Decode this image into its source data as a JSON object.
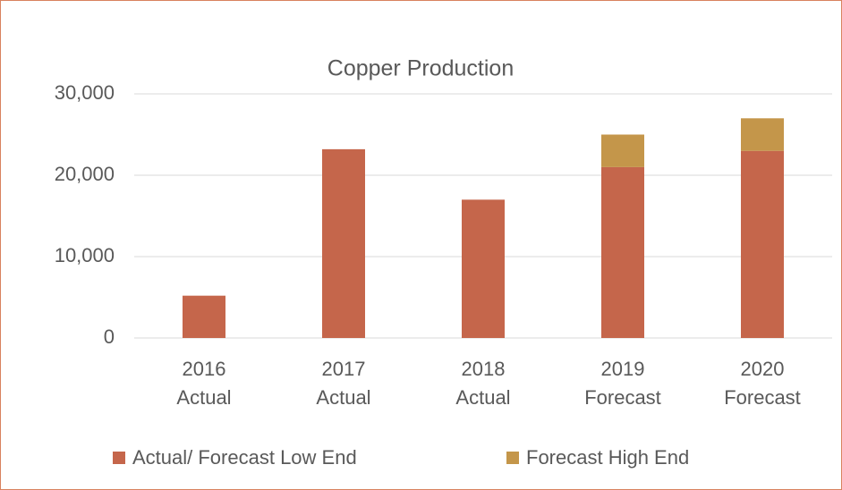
{
  "chart_data": {
    "type": "stacked_bar",
    "title": "Copper Production",
    "categories": [
      "2016 Actual",
      "2017 Actual",
      "2018 Actual",
      "2019 Forecast",
      "2020 Forecast"
    ],
    "series": [
      {
        "name": "Actual/ Forecast Low End",
        "color": "#c5664b",
        "values": [
          5200,
          23200,
          17000,
          21000,
          23000
        ]
      },
      {
        "name": "Forecast High End",
        "color": "#c4964a",
        "values": [
          null,
          null,
          null,
          4000,
          4000
        ]
      }
    ],
    "ylim": [
      0,
      30000
    ],
    "yticks": [
      0,
      {
        "value": 10000,
        "label": "10,000"
      },
      {
        "value": 20000,
        "label": "20,000"
      },
      {
        "value": 30000,
        "label": "30,000"
      }
    ],
    "grid": true,
    "legend": "bottom"
  }
}
